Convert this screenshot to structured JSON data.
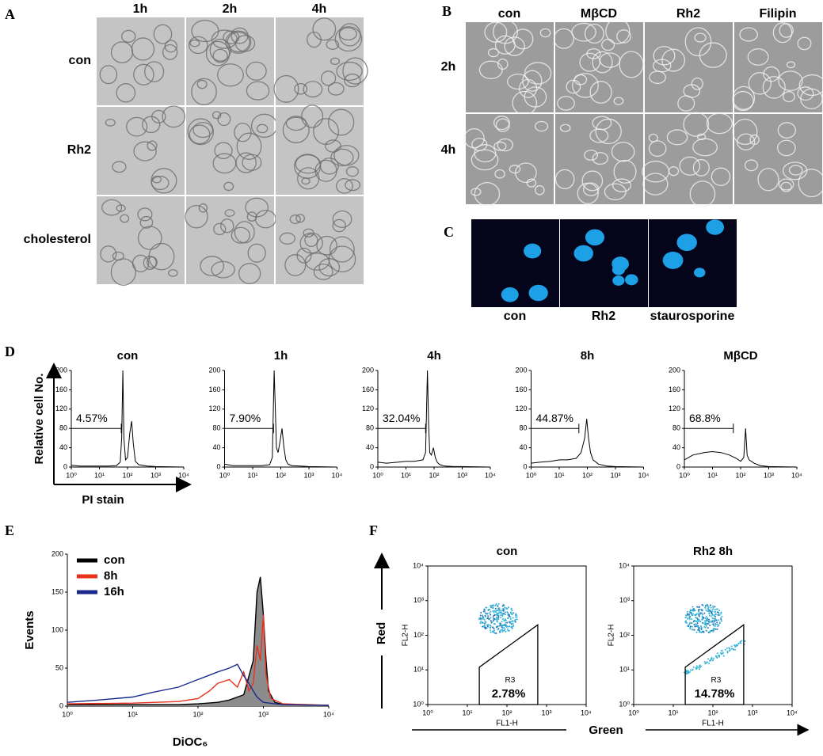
{
  "panels": {
    "A": {
      "label": "A",
      "columns": [
        "1h",
        "2h",
        "4h"
      ],
      "rows": [
        "con",
        "Rh2",
        "cholesterol"
      ]
    },
    "B": {
      "label": "B",
      "columns": [
        "con",
        "MβCD",
        "Rh2",
        "Filipin"
      ],
      "rows": [
        "2h",
        "4h"
      ]
    },
    "C": {
      "label": "C",
      "captions": [
        "con",
        "Rh2",
        "staurosporine"
      ]
    },
    "D": {
      "label": "D"
    },
    "E": {
      "label": "E"
    },
    "F": {
      "label": "F",
      "y_arrow_label": "Red",
      "x_arrow_label": "Green"
    }
  },
  "chart_data": [
    {
      "type": "line",
      "title": "con",
      "y_label": "Relative cell No.",
      "x_label": "PI stain",
      "log_x": true,
      "xlim": [
        1,
        10000
      ],
      "xticks": [
        {
          "value": 1,
          "label": "10⁰"
        },
        {
          "value": 10,
          "label": "10¹"
        },
        {
          "value": 100,
          "label": "10²"
        },
        {
          "value": 1000,
          "label": "10³"
        },
        {
          "value": 10000,
          "label": "10⁴"
        }
      ],
      "ylim": [
        0,
        200
      ],
      "yticks": [
        0,
        40,
        80,
        120,
        160,
        200
      ],
      "series": [
        {
          "color": "#000000",
          "x": [
            1,
            2,
            5,
            10,
            20,
            40,
            55,
            62,
            68,
            74,
            85,
            100,
            120,
            140,
            160,
            190,
            250,
            500,
            1000,
            10000
          ],
          "values": [
            4,
            2,
            2,
            2,
            2,
            3,
            10,
            60,
            200,
            60,
            15,
            20,
            70,
            95,
            50,
            12,
            5,
            2,
            1,
            0
          ]
        }
      ],
      "gate": {
        "x": [
          1,
          60
        ],
        "y": 80,
        "label": "4.57%"
      }
    },
    {
      "type": "line",
      "title": "1h",
      "log_x": true,
      "xlim": [
        1,
        10000
      ],
      "xticks": [
        {
          "value": 1,
          "label": "10⁰"
        },
        {
          "value": 10,
          "label": "10¹"
        },
        {
          "value": 100,
          "label": "10²"
        },
        {
          "value": 1000,
          "label": "10³"
        },
        {
          "value": 10000,
          "label": "10⁴"
        }
      ],
      "ylim": [
        0,
        200
      ],
      "yticks": [
        0,
        40,
        80,
        120,
        160,
        200
      ],
      "series": [
        {
          "color": "#000000",
          "x": [
            1,
            2,
            5,
            10,
            20,
            40,
            50,
            58,
            64,
            70,
            80,
            95,
            110,
            130,
            150,
            180,
            250,
            500,
            1000,
            10000
          ],
          "values": [
            6,
            3,
            3,
            3,
            3,
            5,
            20,
            200,
            120,
            40,
            30,
            55,
            80,
            40,
            15,
            6,
            3,
            2,
            1,
            0
          ]
        }
      ],
      "gate": {
        "x": [
          1,
          55
        ],
        "y": 80,
        "label": "7.90%"
      }
    },
    {
      "type": "line",
      "title": "4h",
      "log_x": true,
      "xlim": [
        1,
        10000
      ],
      "xticks": [
        {
          "value": 1,
          "label": "10⁰"
        },
        {
          "value": 10,
          "label": "10¹"
        },
        {
          "value": 100,
          "label": "10²"
        },
        {
          "value": 1000,
          "label": "10³"
        },
        {
          "value": 10000,
          "label": "10⁴"
        }
      ],
      "ylim": [
        0,
        200
      ],
      "yticks": [
        0,
        40,
        80,
        120,
        160,
        200
      ],
      "series": [
        {
          "color": "#000000",
          "x": [
            1,
            2,
            5,
            10,
            20,
            40,
            50,
            58,
            64,
            70,
            80,
            95,
            110,
            130,
            150,
            180,
            250,
            500,
            1000,
            10000
          ],
          "values": [
            10,
            8,
            10,
            12,
            12,
            15,
            30,
            200,
            90,
            30,
            25,
            40,
            20,
            10,
            6,
            4,
            2,
            1,
            1,
            0
          ]
        }
      ],
      "gate": {
        "x": [
          1,
          50
        ],
        "y": 80,
        "label": "32.04%"
      }
    },
    {
      "type": "line",
      "title": "8h",
      "log_x": true,
      "xlim": [
        1,
        10000
      ],
      "xticks": [
        {
          "value": 1,
          "label": "10⁰"
        },
        {
          "value": 10,
          "label": "10¹"
        },
        {
          "value": 100,
          "label": "10²"
        },
        {
          "value": 1000,
          "label": "10³"
        },
        {
          "value": 10000,
          "label": "10⁴"
        }
      ],
      "ylim": [
        0,
        200
      ],
      "yticks": [
        0,
        40,
        80,
        120,
        160,
        200
      ],
      "series": [
        {
          "color": "#000000",
          "x": [
            1,
            2,
            5,
            10,
            20,
            40,
            60,
            80,
            95,
            110,
            130,
            160,
            250,
            500,
            1000,
            10000
          ],
          "values": [
            8,
            10,
            12,
            15,
            15,
            18,
            30,
            60,
            100,
            60,
            30,
            15,
            6,
            2,
            1,
            0
          ]
        }
      ],
      "gate": {
        "x": [
          1,
          50
        ],
        "y": 80,
        "label": "44.87%"
      }
    },
    {
      "type": "line",
      "title": "MβCD",
      "log_x": true,
      "xlim": [
        1,
        10000
      ],
      "xticks": [
        {
          "value": 1,
          "label": "10⁰"
        },
        {
          "value": 10,
          "label": "10¹"
        },
        {
          "value": 100,
          "label": "10²"
        },
        {
          "value": 1000,
          "label": "10³"
        },
        {
          "value": 10000,
          "label": "10⁴"
        }
      ],
      "ylim": [
        0,
        200
      ],
      "yticks": [
        0,
        40,
        80,
        120,
        160,
        200
      ],
      "series": [
        {
          "color": "#000000",
          "x": [
            1,
            2,
            5,
            10,
            20,
            40,
            70,
            100,
            130,
            150,
            170,
            200,
            300,
            500,
            1000,
            10000
          ],
          "values": [
            15,
            25,
            30,
            32,
            30,
            25,
            18,
            12,
            20,
            80,
            25,
            15,
            8,
            3,
            1,
            0
          ]
        }
      ],
      "gate": {
        "x": [
          1,
          55
        ],
        "y": 80,
        "label": "68.8%"
      }
    },
    {
      "type": "line",
      "y_label": "Events",
      "x_label": "DiOC₆",
      "log_x": true,
      "legend": "upper-left",
      "xlim": [
        1,
        10000
      ],
      "xticks": [
        {
          "value": 1,
          "label": "10⁰"
        },
        {
          "value": 10,
          "label": "10¹"
        },
        {
          "value": 100,
          "label": "10²"
        },
        {
          "value": 1000,
          "label": "10³"
        },
        {
          "value": 10000,
          "label": "10⁴"
        }
      ],
      "ylim": [
        0,
        200
      ],
      "yticks": [
        0,
        50,
        100,
        150,
        200
      ],
      "series": [
        {
          "name": "con",
          "color": "#000000",
          "fill": "#8c8c8c",
          "x": [
            1,
            10,
            50,
            100,
            200,
            300,
            500,
            700,
            800,
            900,
            1000,
            1100,
            1200,
            1500,
            2000,
            10000
          ],
          "values": [
            2,
            2,
            2,
            3,
            5,
            8,
            15,
            60,
            150,
            170,
            120,
            60,
            20,
            5,
            2,
            1
          ]
        },
        {
          "name": "8h",
          "color": "#e8321e",
          "x": [
            1,
            10,
            50,
            100,
            150,
            200,
            300,
            400,
            500,
            600,
            700,
            800,
            900,
            1000,
            1100,
            1300,
            2000,
            10000
          ],
          "values": [
            3,
            4,
            6,
            10,
            20,
            30,
            35,
            25,
            45,
            20,
            30,
            80,
            60,
            120,
            40,
            10,
            3,
            1
          ]
        },
        {
          "name": "16h",
          "color": "#1a2a8c",
          "x": [
            1,
            3,
            10,
            20,
            50,
            100,
            200,
            300,
            400,
            500,
            600,
            700,
            800,
            1000,
            1500,
            2000,
            10000
          ],
          "values": [
            5,
            8,
            12,
            18,
            25,
            35,
            45,
            50,
            55,
            40,
            30,
            20,
            12,
            5,
            3,
            2,
            1
          ]
        }
      ]
    },
    {
      "type": "dotplot",
      "title": "con",
      "x_label": "FL1-H",
      "y_label": "FL2-H",
      "log_x": true,
      "log_y": true,
      "xlim": [
        1,
        10000
      ],
      "xticks": [
        {
          "value": 1,
          "label": "10⁰"
        },
        {
          "value": 10,
          "label": "10¹"
        },
        {
          "value": 100,
          "label": "10²"
        },
        {
          "value": 1000,
          "label": "10³"
        },
        {
          "value": 10000,
          "label": "10⁴"
        }
      ],
      "ylim": [
        1,
        10000
      ],
      "yticks": [
        {
          "value": 1,
          "label": "10⁰"
        },
        {
          "value": 10,
          "label": "10¹"
        },
        {
          "value": 100,
          "label": "10²"
        },
        {
          "value": 1000,
          "label": "10³"
        },
        {
          "value": 10000,
          "label": "10⁴"
        }
      ],
      "gate": {
        "x": [
          20,
          20,
          600,
          600
        ],
        "y": [
          1,
          12,
          200,
          1
        ],
        "label": "R3",
        "percent": "2.78%"
      }
    },
    {
      "type": "dotplot",
      "title": "Rh2 8h",
      "x_label": "FL1-H",
      "y_label": "FL2-H",
      "log_x": true,
      "log_y": true,
      "xlim": [
        1,
        10000
      ],
      "xticks": [
        {
          "value": 1,
          "label": "10⁰"
        },
        {
          "value": 10,
          "label": "10¹"
        },
        {
          "value": 100,
          "label": "10²"
        },
        {
          "value": 1000,
          "label": "10³"
        },
        {
          "value": 10000,
          "label": "10⁴"
        }
      ],
      "ylim": [
        1,
        10000
      ],
      "yticks": [
        {
          "value": 1,
          "label": "10⁰"
        },
        {
          "value": 10,
          "label": "10¹"
        },
        {
          "value": 100,
          "label": "10²"
        },
        {
          "value": 1000,
          "label": "10³"
        },
        {
          "value": 10000,
          "label": "10⁴"
        }
      ],
      "gate": {
        "x": [
          20,
          20,
          600,
          600
        ],
        "y": [
          1,
          12,
          200,
          1
        ],
        "label": "R3",
        "percent": "14.78%"
      }
    }
  ]
}
